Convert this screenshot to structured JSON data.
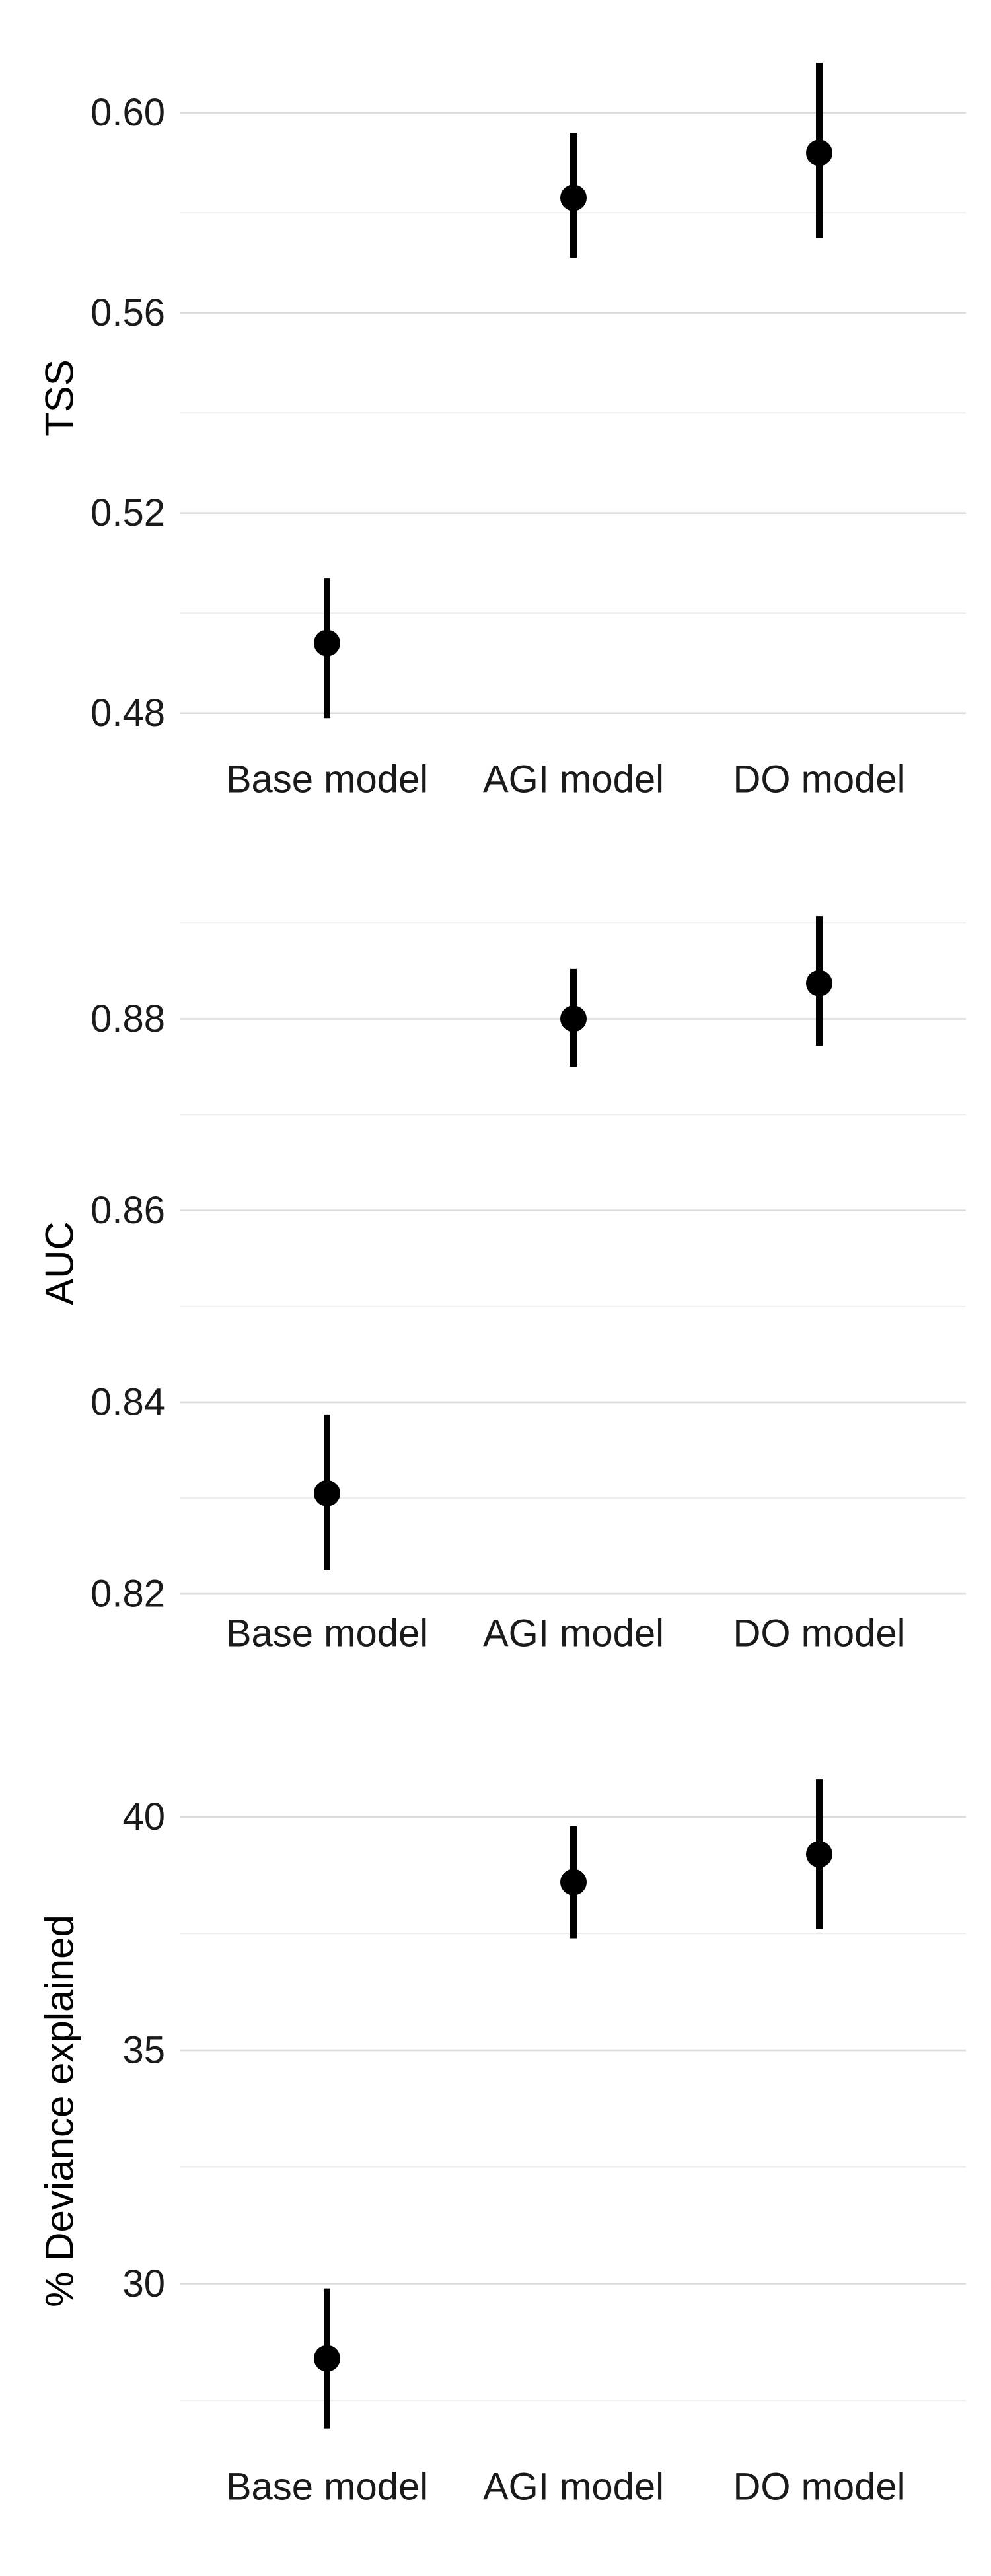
{
  "chart_data": [
    {
      "type": "scatter",
      "ylabel": "TSS",
      "categories": [
        "Base model",
        "AGI model",
        "DO model"
      ],
      "ylim": [
        0.476,
        0.61
      ],
      "yticks": [
        0.48,
        0.52,
        0.56,
        0.6
      ],
      "ytick_labels": [
        "0.48",
        "0.52",
        "0.56",
        "0.60"
      ],
      "minor_yticks": [
        0.5,
        0.54,
        0.58
      ],
      "values": [
        0.494,
        0.583,
        0.592
      ],
      "lower": [
        0.479,
        0.571,
        0.575
      ],
      "upper": [
        0.507,
        0.596,
        0.61
      ],
      "grid": true,
      "legend": "none"
    },
    {
      "type": "scatter",
      "ylabel": "AUC",
      "categories": [
        "Base model",
        "AGI model",
        "DO model"
      ],
      "ylim": [
        0.8185,
        0.8905
      ],
      "yticks": [
        0.82,
        0.84,
        0.86,
        0.88
      ],
      "ytick_labels": [
        "0.82",
        "0.84",
        "0.86",
        "0.88"
      ],
      "minor_yticks": [
        0.83,
        0.85,
        0.87,
        0.89
      ],
      "values": [
        0.8305,
        0.88,
        0.8837
      ],
      "lower": [
        0.8225,
        0.875,
        0.8772
      ],
      "upper": [
        0.8387,
        0.8852,
        0.8907
      ],
      "grid": true,
      "legend": "none"
    },
    {
      "type": "scatter",
      "ylabel": "% Deviance explained",
      "categories": [
        "Base model",
        "AGI model",
        "DO model"
      ],
      "ylim": [
        26.4,
        41.0
      ],
      "yticks": [
        30,
        35,
        40
      ],
      "ytick_labels": [
        "30",
        "35",
        "40"
      ],
      "minor_yticks": [
        27.5,
        32.5,
        37.5
      ],
      "values": [
        28.4,
        38.6,
        39.2
      ],
      "lower": [
        26.9,
        37.4,
        37.6
      ],
      "upper": [
        29.9,
        39.8,
        40.8
      ],
      "grid": true,
      "legend": "none"
    }
  ]
}
